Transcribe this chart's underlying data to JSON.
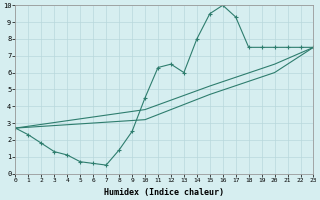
{
  "line1_x": [
    0,
    1,
    2,
    3,
    4,
    5,
    6,
    7,
    8,
    9,
    10,
    11,
    12,
    13,
    14,
    15,
    16,
    17,
    18,
    19,
    20,
    21,
    22,
    23
  ],
  "line1_y": [
    2.7,
    2.3,
    1.8,
    1.3,
    1.1,
    0.7,
    0.6,
    0.5,
    1.4,
    2.5,
    4.5,
    6.3,
    6.5,
    6.0,
    8.0,
    9.5,
    10.0,
    9.3,
    7.5,
    7.5,
    7.5,
    7.5,
    7.5,
    7.5
  ],
  "line2_x": [
    0,
    23
  ],
  "line2_y": [
    2.7,
    7.5
  ],
  "line3_x": [
    0,
    23
  ],
  "line3_y": [
    2.7,
    7.5
  ],
  "line2_ctrl": [
    [
      0,
      2.7
    ],
    [
      10,
      3.8
    ],
    [
      15,
      5.2
    ],
    [
      20,
      6.5
    ],
    [
      23,
      7.5
    ]
  ],
  "line3_ctrl": [
    [
      0,
      2.7
    ],
    [
      10,
      3.2
    ],
    [
      15,
      4.7
    ],
    [
      20,
      6.0
    ],
    [
      23,
      7.5
    ]
  ],
  "color": "#2E7D6E",
  "bg_color": "#D6EEF0",
  "grid_color": "#B8D8DC",
  "xlabel": "Humidex (Indice chaleur)",
  "ylim": [
    0,
    10
  ],
  "xlim": [
    0,
    23
  ],
  "yticks": [
    0,
    1,
    2,
    3,
    4,
    5,
    6,
    7,
    8,
    9,
    10
  ],
  "xticks": [
    0,
    1,
    2,
    3,
    4,
    5,
    6,
    7,
    8,
    9,
    10,
    11,
    12,
    13,
    14,
    15,
    16,
    17,
    18,
    19,
    20,
    21,
    22,
    23
  ]
}
